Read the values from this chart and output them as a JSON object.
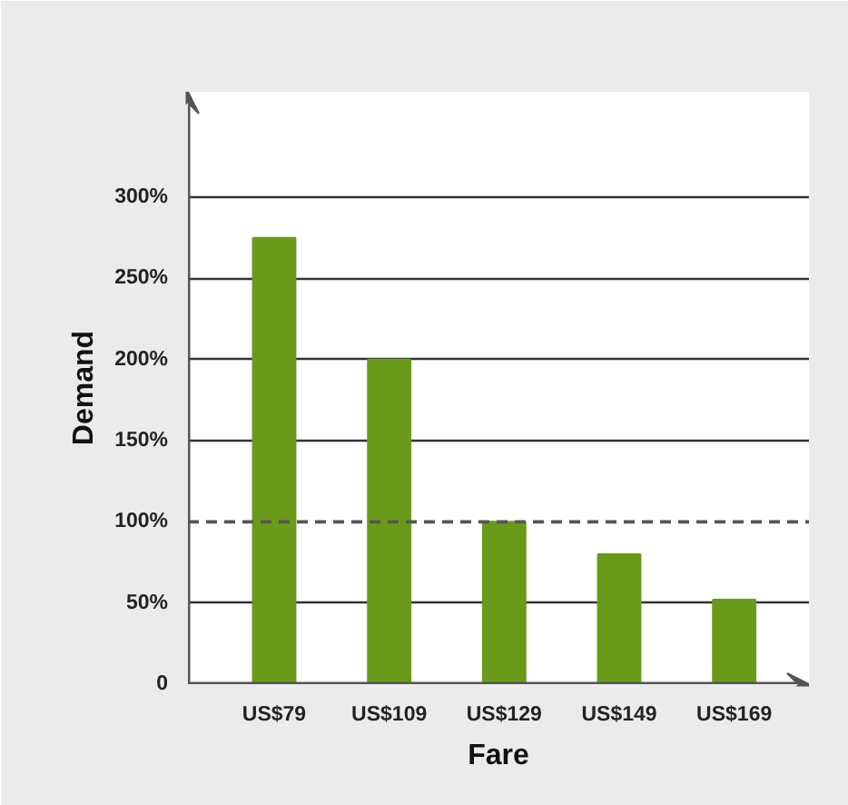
{
  "chart_data": {
    "type": "bar",
    "xlabel": "Fare",
    "ylabel": "Demand",
    "categories": [
      "US$79",
      "US$109",
      "US$129",
      "US$149",
      "US$169"
    ],
    "values": [
      275,
      200,
      100,
      80,
      52
    ],
    "color": "#6a9a1a",
    "ylim": [
      0,
      365
    ],
    "yticks": [
      {
        "value": 0,
        "label": "0"
      },
      {
        "value": 50,
        "label": "50%"
      },
      {
        "value": 100,
        "label": "100%"
      },
      {
        "value": 150,
        "label": "150%"
      },
      {
        "value": 200,
        "label": "200%"
      },
      {
        "value": 250,
        "label": "250%"
      },
      {
        "value": 300,
        "label": "300%"
      }
    ],
    "grid": "y",
    "ref_lines": [
      {
        "axis": "y",
        "value": 100,
        "color": "#555555",
        "line_style": "dashed"
      }
    ]
  }
}
